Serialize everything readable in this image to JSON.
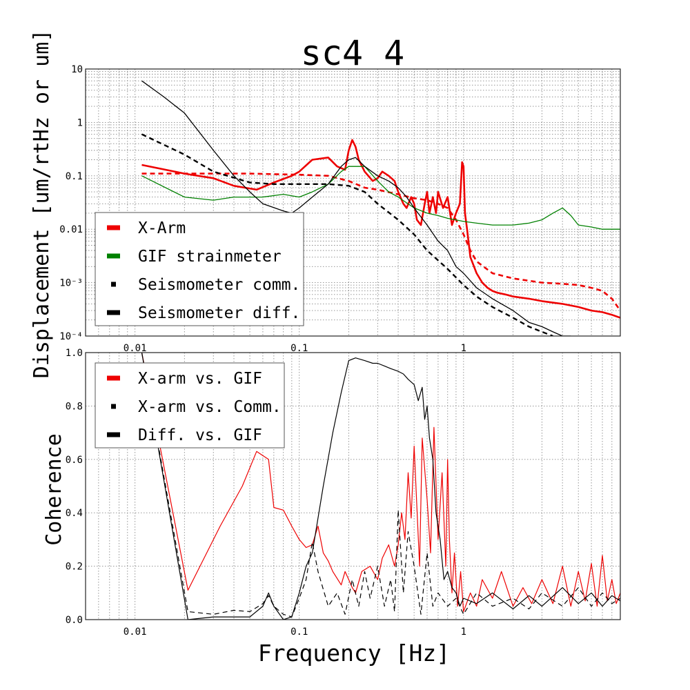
{
  "figure": {
    "title": "sc4_4",
    "xlabel": "Frequency [Hz]"
  },
  "colors": {
    "red": "#ee0000",
    "green": "#008000",
    "black": "#000000",
    "grid": "#888888"
  },
  "chart_data": [
    {
      "type": "line",
      "title": "sc4_4",
      "xscale": "log",
      "yscale": "log",
      "xlim": [
        0.005,
        9
      ],
      "ylim": [
        0.0001,
        10
      ],
      "grid": true,
      "ylabel": "Displacement [um/rtHz or um]",
      "xticklabels": [
        "0.01",
        "0.1",
        "1"
      ],
      "yticklabels": [
        "10",
        "1",
        "0.1",
        "0.01",
        "10⁻³",
        "10⁻⁴"
      ],
      "legend": {
        "placement": "lower-left",
        "entries": [
          "X-Arm",
          "GIF strainmeter",
          "Seismometer comm.",
          "Seismometer diff."
        ]
      },
      "series": [
        {
          "name": "X-Arm",
          "color": "#ee0000",
          "style": "solid",
          "width": 2.6,
          "x": [
            0.011,
            0.02,
            0.03,
            0.04,
            0.055,
            0.07,
            0.09,
            0.1,
            0.12,
            0.15,
            0.17,
            0.19,
            0.2,
            0.21,
            0.22,
            0.23,
            0.25,
            0.28,
            0.3,
            0.32,
            0.35,
            0.38,
            0.4,
            0.43,
            0.45,
            0.48,
            0.5,
            0.52,
            0.55,
            0.58,
            0.6,
            0.62,
            0.65,
            0.68,
            0.7,
            0.75,
            0.8,
            0.85,
            0.9,
            0.95,
            0.98,
            1.0,
            1.02,
            1.05,
            1.1,
            1.2,
            1.3,
            1.4,
            1.5,
            1.6,
            1.8,
            2.0,
            2.5,
            3.0,
            4.0,
            5.0,
            6.0,
            7.0,
            8.0,
            9.0
          ],
          "y": [
            0.16,
            0.11,
            0.09,
            0.065,
            0.055,
            0.075,
            0.1,
            0.12,
            0.2,
            0.22,
            0.15,
            0.13,
            0.3,
            0.47,
            0.35,
            0.2,
            0.12,
            0.08,
            0.09,
            0.12,
            0.1,
            0.08,
            0.05,
            0.03,
            0.025,
            0.04,
            0.03,
            0.015,
            0.012,
            0.03,
            0.05,
            0.02,
            0.04,
            0.02,
            0.05,
            0.025,
            0.04,
            0.012,
            0.02,
            0.03,
            0.18,
            0.15,
            0.02,
            0.01,
            0.003,
            0.0015,
            0.001,
            0.0008,
            0.0007,
            0.00065,
            0.0006,
            0.00055,
            0.0005,
            0.00045,
            0.0004,
            0.00035,
            0.0003,
            0.00028,
            0.00025,
            0.00022
          ]
        },
        {
          "name": "X-Arm (dashed)",
          "color": "#ee0000",
          "style": "dashed",
          "width": 2.6,
          "x": [
            0.011,
            0.05,
            0.1,
            0.15,
            0.2,
            0.25,
            0.3,
            0.4,
            0.5,
            0.6,
            0.7,
            0.8,
            0.9,
            1.0,
            1.1,
            1.2,
            1.5,
            2.0,
            3.0,
            4.0,
            5.0,
            6.0,
            7.0,
            8.0,
            9.0
          ],
          "y": [
            0.11,
            0.11,
            0.105,
            0.1,
            0.08,
            0.06,
            0.055,
            0.045,
            0.038,
            0.035,
            0.03,
            0.025,
            0.015,
            0.008,
            0.004,
            0.0025,
            0.0015,
            0.0012,
            0.001,
            0.00095,
            0.0009,
            0.0008,
            0.0007,
            0.0005,
            0.0003
          ]
        },
        {
          "name": "GIF strainmeter",
          "color": "#008000",
          "style": "solid",
          "width": 1.3,
          "x": [
            0.011,
            0.02,
            0.03,
            0.04,
            0.06,
            0.08,
            0.1,
            0.12,
            0.15,
            0.18,
            0.2,
            0.25,
            0.3,
            0.35,
            0.4,
            0.5,
            0.6,
            0.7,
            0.8,
            1.0,
            1.2,
            1.5,
            2.0,
            2.5,
            3.0,
            3.5,
            4.0,
            4.5,
            5.0,
            6.0,
            7.0,
            8.0,
            9.0
          ],
          "y": [
            0.1,
            0.04,
            0.035,
            0.04,
            0.04,
            0.045,
            0.04,
            0.05,
            0.07,
            0.12,
            0.15,
            0.15,
            0.08,
            0.05,
            0.04,
            0.025,
            0.02,
            0.018,
            0.016,
            0.014,
            0.013,
            0.012,
            0.012,
            0.013,
            0.015,
            0.02,
            0.025,
            0.018,
            0.012,
            0.011,
            0.01,
            0.01,
            0.01
          ]
        },
        {
          "name": "Seismometer comm.",
          "color": "#000000",
          "style": "dashed",
          "width": 2.4,
          "x": [
            0.011,
            0.02,
            0.03,
            0.05,
            0.07,
            0.1,
            0.15,
            0.2,
            0.25,
            0.3,
            0.4,
            0.5,
            0.6,
            0.8,
            1.0,
            1.2,
            1.5,
            2.0,
            2.5,
            3.0,
            3.5
          ],
          "y": [
            0.6,
            0.25,
            0.12,
            0.075,
            0.07,
            0.07,
            0.07,
            0.065,
            0.05,
            0.03,
            0.015,
            0.008,
            0.004,
            0.0018,
            0.0009,
            0.00055,
            0.00035,
            0.00022,
            0.00015,
            0.00012,
            0.0001
          ]
        },
        {
          "name": "Seismometer diff.",
          "color": "#000000",
          "style": "solid",
          "width": 1.3,
          "x": [
            0.011,
            0.015,
            0.02,
            0.03,
            0.04,
            0.05,
            0.06,
            0.08,
            0.09,
            0.1,
            0.12,
            0.15,
            0.18,
            0.2,
            0.22,
            0.25,
            0.3,
            0.35,
            0.4,
            0.45,
            0.5,
            0.6,
            0.7,
            0.8,
            0.9,
            1.0,
            1.2,
            1.5,
            2.0,
            2.5,
            3.0,
            3.5,
            4.0,
            4.5
          ],
          "y": [
            6.0,
            3.0,
            1.5,
            0.3,
            0.1,
            0.05,
            0.03,
            0.022,
            0.02,
            0.025,
            0.04,
            0.07,
            0.15,
            0.2,
            0.22,
            0.15,
            0.1,
            0.08,
            0.06,
            0.04,
            0.025,
            0.012,
            0.006,
            0.004,
            0.002,
            0.0015,
            0.0008,
            0.0005,
            0.0003,
            0.00018,
            0.00015,
            0.00012,
            0.0001,
            0.0001
          ]
        }
      ]
    },
    {
      "type": "line",
      "xscale": "log",
      "yscale": "linear",
      "xlim": [
        0.005,
        9
      ],
      "ylim": [
        0,
        1
      ],
      "grid": true,
      "ylabel": "Coherence",
      "xticklabels": [
        "0.01",
        "0.1",
        "1"
      ],
      "yticklabels": [
        "1.0",
        "0.8",
        "0.6",
        "0.4",
        "0.2",
        "0.0"
      ],
      "legend": {
        "placement": "upper-left",
        "entries": [
          "X-arm vs. GIF",
          "X-arm vs. Comm.",
          "Diff. vs. GIF"
        ]
      },
      "series": [
        {
          "name": "X-arm vs. GIF",
          "color": "#ee0000",
          "style": "solid",
          "width": 1.2,
          "x": [
            0.011,
            0.021,
            0.033,
            0.045,
            0.055,
            0.065,
            0.07,
            0.08,
            0.09,
            0.1,
            0.11,
            0.12,
            0.13,
            0.14,
            0.15,
            0.16,
            0.18,
            0.19,
            0.2,
            0.21,
            0.22,
            0.24,
            0.27,
            0.3,
            0.32,
            0.35,
            0.38,
            0.4,
            0.42,
            0.44,
            0.46,
            0.48,
            0.5,
            0.52,
            0.54,
            0.56,
            0.6,
            0.63,
            0.66,
            0.7,
            0.74,
            0.78,
            0.8,
            0.82,
            0.85,
            0.88,
            0.92,
            0.96,
            1.0,
            1.1,
            1.2,
            1.3,
            1.5,
            1.7,
            2.0,
            2.3,
            2.6,
            3.0,
            3.5,
            4.0,
            4.5,
            5.0,
            5.5,
            6.0,
            6.5,
            7.0,
            7.5,
            8.0,
            8.5,
            9.0
          ],
          "y": [
            1.0,
            0.11,
            0.35,
            0.5,
            0.63,
            0.6,
            0.42,
            0.41,
            0.35,
            0.3,
            0.27,
            0.28,
            0.35,
            0.25,
            0.22,
            0.18,
            0.13,
            0.18,
            0.15,
            0.12,
            0.1,
            0.18,
            0.2,
            0.15,
            0.23,
            0.28,
            0.2,
            0.28,
            0.4,
            0.3,
            0.55,
            0.38,
            0.65,
            0.42,
            0.2,
            0.68,
            0.45,
            0.25,
            0.72,
            0.3,
            0.55,
            0.2,
            0.6,
            0.3,
            0.1,
            0.25,
            0.05,
            0.18,
            0.03,
            0.1,
            0.05,
            0.15,
            0.08,
            0.18,
            0.05,
            0.12,
            0.06,
            0.15,
            0.06,
            0.2,
            0.05,
            0.18,
            0.07,
            0.21,
            0.05,
            0.24,
            0.07,
            0.15,
            0.06,
            0.1
          ]
        },
        {
          "name": "X-arm vs. Comm.",
          "color": "#000000",
          "style": "dashed",
          "width": 1.2,
          "x": [
            0.011,
            0.021,
            0.03,
            0.04,
            0.05,
            0.06,
            0.065,
            0.07,
            0.08,
            0.09,
            0.1,
            0.11,
            0.12,
            0.13,
            0.15,
            0.17,
            0.19,
            0.21,
            0.23,
            0.25,
            0.27,
            0.3,
            0.33,
            0.36,
            0.38,
            0.4,
            0.43,
            0.46,
            0.5,
            0.55,
            0.6,
            0.65,
            0.7,
            0.8,
            0.9,
            1.0,
            1.2,
            1.5,
            2.0,
            2.5,
            3.0,
            4.0,
            5.0,
            6.0,
            7.0,
            8.0,
            9.0
          ],
          "y": [
            1.0,
            0.03,
            0.02,
            0.035,
            0.03,
            0.06,
            0.09,
            0.05,
            0.02,
            0.01,
            0.08,
            0.15,
            0.29,
            0.18,
            0.05,
            0.1,
            0.02,
            0.15,
            0.05,
            0.18,
            0.08,
            0.2,
            0.05,
            0.15,
            0.03,
            0.41,
            0.1,
            0.33,
            0.2,
            0.02,
            0.25,
            0.05,
            0.1,
            0.05,
            0.08,
            0.02,
            0.1,
            0.05,
            0.08,
            0.04,
            0.1,
            0.05,
            0.12,
            0.05,
            0.1,
            0.06,
            0.08
          ]
        },
        {
          "name": "Diff. vs. GIF",
          "color": "#000000",
          "style": "solid",
          "width": 1.2,
          "x": [
            0.011,
            0.021,
            0.03,
            0.04,
            0.05,
            0.06,
            0.065,
            0.07,
            0.08,
            0.09,
            0.1,
            0.11,
            0.12,
            0.14,
            0.16,
            0.18,
            0.2,
            0.22,
            0.25,
            0.28,
            0.3,
            0.33,
            0.36,
            0.4,
            0.43,
            0.46,
            0.5,
            0.53,
            0.56,
            0.58,
            0.6,
            0.62,
            0.65,
            0.68,
            0.72,
            0.76,
            0.8,
            0.85,
            0.9,
            0.95,
            1.0,
            1.2,
            1.5,
            2.0,
            2.5,
            3.0,
            4.0,
            5.0,
            6.0,
            7.0,
            8.0,
            9.0
          ],
          "y": [
            1.0,
            0.0,
            0.01,
            0.01,
            0.01,
            0.05,
            0.1,
            0.05,
            0.0,
            0.01,
            0.1,
            0.2,
            0.25,
            0.5,
            0.7,
            0.85,
            0.97,
            0.98,
            0.97,
            0.96,
            0.96,
            0.95,
            0.94,
            0.93,
            0.92,
            0.9,
            0.88,
            0.82,
            0.87,
            0.75,
            0.8,
            0.68,
            0.6,
            0.4,
            0.3,
            0.15,
            0.18,
            0.12,
            0.1,
            0.05,
            0.08,
            0.06,
            0.1,
            0.04,
            0.09,
            0.05,
            0.12,
            0.06,
            0.1,
            0.05,
            0.09,
            0.07
          ]
        }
      ]
    }
  ]
}
